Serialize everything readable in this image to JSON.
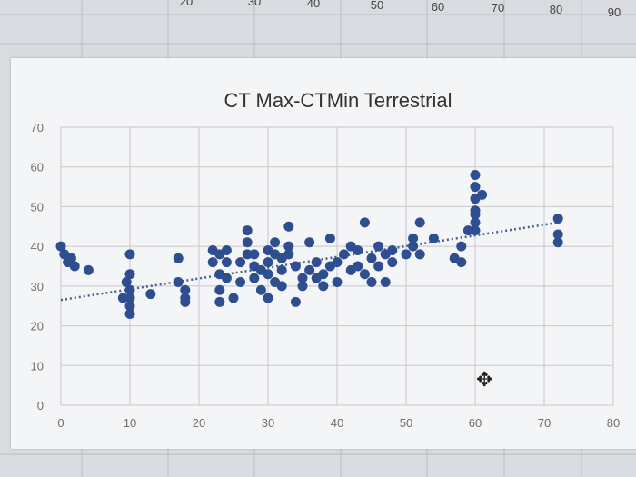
{
  "spreadsheet": {
    "column_headers": [
      "20",
      "30",
      "40",
      "50",
      "60",
      "70",
      "80",
      "90"
    ]
  },
  "colors": {
    "marker": "#2f4e8f",
    "trendline": "#4a5f8f",
    "gridline": "#c8c8c8"
  },
  "chart_data": {
    "type": "scatter",
    "title": "CT Max-CTMin Terrestrial",
    "xlabel": "",
    "ylabel": "",
    "xlim": [
      0,
      80
    ],
    "ylim": [
      0,
      70
    ],
    "xticks": [
      0,
      10,
      20,
      30,
      40,
      50,
      60,
      70,
      80
    ],
    "yticks": [
      0,
      10,
      20,
      30,
      40,
      50,
      60,
      70
    ],
    "grid": true,
    "legend": "none",
    "trendline": {
      "style": "dotted",
      "type": "linear",
      "x": [
        0,
        72
      ],
      "y": [
        26.5,
        46
      ]
    },
    "series": [
      {
        "points": [
          [
            0,
            40
          ],
          [
            0.5,
            38
          ],
          [
            1,
            36
          ],
          [
            1.5,
            37
          ],
          [
            2,
            35
          ],
          [
            4,
            34
          ],
          [
            9,
            27
          ],
          [
            9.5,
            31
          ],
          [
            10,
            23
          ],
          [
            10,
            25
          ],
          [
            10,
            29
          ],
          [
            10,
            33
          ],
          [
            10,
            38
          ],
          [
            10,
            27
          ],
          [
            13,
            28
          ],
          [
            17,
            31
          ],
          [
            17,
            37
          ],
          [
            18,
            29
          ],
          [
            18,
            27
          ],
          [
            18,
            26
          ],
          [
            22,
            39
          ],
          [
            22,
            36
          ],
          [
            23,
            38
          ],
          [
            23,
            33
          ],
          [
            23,
            29
          ],
          [
            23,
            26
          ],
          [
            24,
            32
          ],
          [
            24,
            36
          ],
          [
            24,
            39
          ],
          [
            25,
            27
          ],
          [
            26,
            31
          ],
          [
            26,
            36
          ],
          [
            27,
            41
          ],
          [
            27,
            38
          ],
          [
            27,
            44
          ],
          [
            28,
            32
          ],
          [
            28,
            35
          ],
          [
            28,
            38
          ],
          [
            29,
            29
          ],
          [
            29,
            34
          ],
          [
            30,
            39
          ],
          [
            30,
            27
          ],
          [
            30,
            33
          ],
          [
            30,
            36
          ],
          [
            31,
            41
          ],
          [
            31,
            38
          ],
          [
            31,
            31
          ],
          [
            32,
            34
          ],
          [
            32,
            30
          ],
          [
            32,
            37
          ],
          [
            33,
            38
          ],
          [
            33,
            45
          ],
          [
            33,
            40
          ],
          [
            34,
            26
          ],
          [
            34,
            35
          ],
          [
            35,
            32
          ],
          [
            35,
            30
          ],
          [
            36,
            34
          ],
          [
            36,
            41
          ],
          [
            37,
            36
          ],
          [
            37,
            32
          ],
          [
            38,
            33
          ],
          [
            38,
            30
          ],
          [
            39,
            35
          ],
          [
            39,
            42
          ],
          [
            40,
            36
          ],
          [
            40,
            31
          ],
          [
            41,
            38
          ],
          [
            42,
            34
          ],
          [
            42,
            40
          ],
          [
            43,
            39
          ],
          [
            43,
            35
          ],
          [
            44,
            46
          ],
          [
            44,
            33
          ],
          [
            45,
            31
          ],
          [
            45,
            37
          ],
          [
            46,
            35
          ],
          [
            46,
            40
          ],
          [
            47,
            31
          ],
          [
            47,
            38
          ],
          [
            48,
            36
          ],
          [
            48,
            39
          ],
          [
            50,
            38
          ],
          [
            51,
            40
          ],
          [
            51,
            42
          ],
          [
            52,
            46
          ],
          [
            52,
            38
          ],
          [
            54,
            42
          ],
          [
            57,
            37
          ],
          [
            58,
            36
          ],
          [
            58,
            40
          ],
          [
            59,
            44
          ],
          [
            60,
            52
          ],
          [
            60,
            55
          ],
          [
            60,
            58
          ],
          [
            60,
            48
          ],
          [
            60,
            46
          ],
          [
            60,
            44
          ],
          [
            60,
            49
          ],
          [
            61,
            53
          ],
          [
            72,
            47
          ],
          [
            72,
            43
          ],
          [
            72,
            41
          ]
        ]
      }
    ]
  }
}
